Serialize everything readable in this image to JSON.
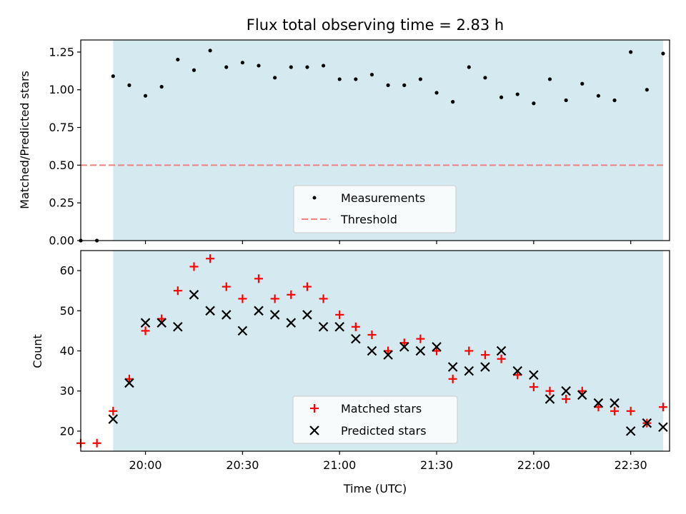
{
  "chart_data": [
    {
      "type": "scatter",
      "title": "Flux total observing time = 2.83 h",
      "xlabel": "",
      "ylabel": "Matched/Predicted stars",
      "ylim": [
        0,
        1.33
      ],
      "yticks": [
        "0.00",
        "0.25",
        "0.50",
        "0.75",
        "1.00",
        "1.25"
      ],
      "xlim": [
        "19:40",
        "22:42"
      ],
      "shaded_interval": [
        "19:50",
        "22:40"
      ],
      "shade_color": "#d4eaf0",
      "legend_location": "lower center",
      "threshold": {
        "name": "Threshold",
        "y": 0.5,
        "x_range": [
          "19:40",
          "22:40"
        ],
        "color": "#f08080",
        "style": "dashed"
      },
      "series": [
        {
          "name": "Measurements",
          "marker": "dot",
          "color": "#000000",
          "x": [
            "19:40",
            "19:45",
            "19:50",
            "19:55",
            "20:00",
            "20:05",
            "20:10",
            "20:15",
            "20:20",
            "20:25",
            "20:30",
            "20:35",
            "20:40",
            "20:45",
            "20:50",
            "20:55",
            "21:00",
            "21:05",
            "21:10",
            "21:15",
            "21:20",
            "21:25",
            "21:30",
            "21:35",
            "21:40",
            "21:45",
            "21:50",
            "21:55",
            "22:00",
            "22:05",
            "22:10",
            "22:15",
            "22:20",
            "22:25",
            "22:30",
            "22:35",
            "22:40"
          ],
          "y": [
            0.0,
            0.0,
            1.09,
            1.03,
            0.96,
            1.02,
            1.2,
            1.13,
            1.26,
            1.15,
            1.18,
            1.16,
            1.08,
            1.15,
            1.15,
            1.16,
            1.07,
            1.07,
            1.1,
            1.03,
            1.03,
            1.07,
            0.98,
            0.92,
            1.15,
            1.08,
            0.95,
            0.97,
            0.91,
            1.07,
            0.93,
            1.04,
            0.96,
            0.93,
            1.25,
            1.0,
            1.24
          ]
        }
      ]
    },
    {
      "type": "scatter",
      "title": "",
      "xlabel": "Time (UTC)",
      "ylabel": "Count",
      "ylim": [
        15,
        65
      ],
      "yticks": [
        "20",
        "30",
        "40",
        "50",
        "60"
      ],
      "xlim": [
        "19:40",
        "22:42"
      ],
      "xticks": [
        "20:00",
        "20:30",
        "21:00",
        "21:30",
        "22:00",
        "22:30"
      ],
      "shaded_interval": [
        "19:50",
        "22:40"
      ],
      "shade_color": "#d4eaf0",
      "legend_location": "lower center",
      "series": [
        {
          "name": "Matched stars",
          "marker": "plus",
          "color": "#ff0000",
          "x": [
            "19:40",
            "19:45",
            "19:50",
            "19:55",
            "20:00",
            "20:05",
            "20:10",
            "20:15",
            "20:20",
            "20:25",
            "20:30",
            "20:35",
            "20:40",
            "20:45",
            "20:50",
            "20:55",
            "21:00",
            "21:05",
            "21:10",
            "21:15",
            "21:20",
            "21:25",
            "21:30",
            "21:35",
            "21:40",
            "21:45",
            "21:50",
            "21:55",
            "22:00",
            "22:05",
            "22:10",
            "22:15",
            "22:20",
            "22:25",
            "22:30",
            "22:35",
            "22:40"
          ],
          "y": [
            17,
            17,
            25,
            33,
            45,
            48,
            55,
            61,
            63,
            56,
            53,
            58,
            53,
            54,
            56,
            53,
            49,
            46,
            44,
            40,
            42,
            43,
            40,
            33,
            40,
            39,
            38,
            34,
            31,
            30,
            28,
            30,
            26,
            25,
            25,
            22,
            26
          ]
        },
        {
          "name": "Predicted stars",
          "marker": "x",
          "color": "#000000",
          "x": [
            "19:50",
            "19:55",
            "20:00",
            "20:05",
            "20:10",
            "20:15",
            "20:20",
            "20:25",
            "20:30",
            "20:35",
            "20:40",
            "20:45",
            "20:50",
            "20:55",
            "21:00",
            "21:05",
            "21:10",
            "21:15",
            "21:20",
            "21:25",
            "21:30",
            "21:35",
            "21:40",
            "21:45",
            "21:50",
            "21:55",
            "22:00",
            "22:05",
            "22:10",
            "22:15",
            "22:20",
            "22:25",
            "22:30",
            "22:35",
            "22:40"
          ],
          "y": [
            23,
            32,
            47,
            47,
            46,
            54,
            50,
            49,
            45,
            50,
            49,
            47,
            49,
            46,
            46,
            43,
            40,
            39,
            41,
            40,
            41,
            36,
            35,
            36,
            40,
            35,
            34,
            28,
            30,
            29,
            27,
            27,
            20,
            22,
            21
          ]
        }
      ]
    }
  ]
}
